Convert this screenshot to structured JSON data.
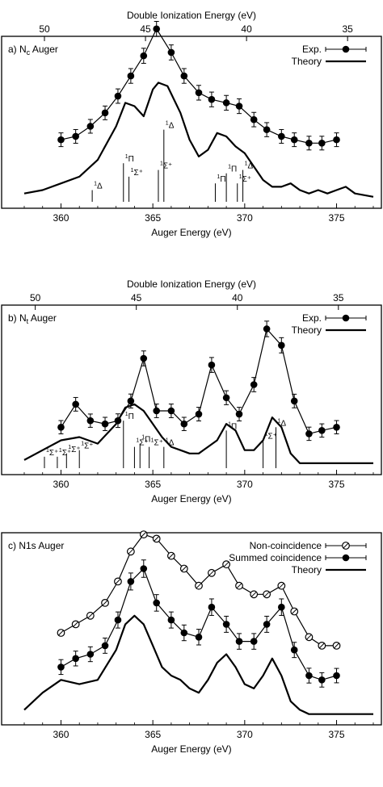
{
  "chart_data": [
    {
      "panel": "a",
      "type": "line",
      "title": "a) N",
      "title_sub": "c",
      "title_rest": " Auger",
      "xlabel": "Auger Energy (eV)",
      "top_axis_label": "Double Ionization Energy (eV)",
      "xlim": [
        358,
        377
      ],
      "ylim": [
        0,
        1
      ],
      "x_ticks": [
        360,
        365,
        370,
        375
      ],
      "top_ticks": [
        {
          "v": 50,
          "x": 359.1
        },
        {
          "v": 45,
          "x": 364.6
        },
        {
          "v": 40,
          "x": 370.1
        },
        {
          "v": 35,
          "x": 375.6
        }
      ],
      "legend": [
        {
          "label": "Exp.",
          "style": "points"
        },
        {
          "label": "Theory",
          "style": "line"
        }
      ],
      "series": [
        {
          "name": "Exp.",
          "style": "points",
          "x": [
            360,
            360.8,
            361.6,
            362.4,
            363.1,
            363.8,
            364.5,
            365.2,
            366,
            366.7,
            367.5,
            368.2,
            369,
            369.7,
            370.5,
            371.2,
            372,
            372.7,
            373.5,
            374.2,
            375
          ],
          "y": [
            0.18,
            0.19,
            0.22,
            0.26,
            0.31,
            0.37,
            0.43,
            0.51,
            0.44,
            0.37,
            0.32,
            0.3,
            0.29,
            0.28,
            0.24,
            0.21,
            0.19,
            0.18,
            0.17,
            0.17,
            0.18
          ],
          "err": [
            0.012,
            0.012,
            0.012,
            0.012,
            0.014,
            0.015,
            0.016,
            0.016,
            0.016,
            0.015,
            0.015,
            0.015,
            0.015,
            0.015,
            0.014,
            0.013,
            0.012,
            0.012,
            0.012,
            0.012,
            0.012
          ]
        },
        {
          "name": "Theory",
          "style": "line",
          "x": [
            358,
            359,
            360,
            361,
            362,
            363,
            363.5,
            364,
            364.5,
            365,
            365.3,
            365.8,
            366.5,
            367,
            367.5,
            368,
            368.5,
            369,
            369.5,
            370,
            370.5,
            371,
            371.5,
            372,
            372.5,
            373,
            373.5,
            374,
            374.5,
            375,
            375.5,
            376,
            377
          ],
          "y": [
            0.02,
            0.03,
            0.05,
            0.07,
            0.12,
            0.22,
            0.29,
            0.28,
            0.25,
            0.33,
            0.35,
            0.34,
            0.26,
            0.18,
            0.13,
            0.15,
            0.2,
            0.19,
            0.16,
            0.14,
            0.1,
            0.06,
            0.04,
            0.04,
            0.05,
            0.03,
            0.02,
            0.03,
            0.02,
            0.03,
            0.04,
            0.02,
            0.01
          ]
        }
      ],
      "annotations": [
        {
          "label": "Δ",
          "x": 361.7,
          "h": 0.03
        },
        {
          "label": "Π",
          "x": 363.4,
          "h": 0.11
        },
        {
          "label": "Σ⁺",
          "x": 363.7,
          "h": 0.07
        },
        {
          "label": "Σ⁺",
          "x": 365.3,
          "h": 0.09
        },
        {
          "label": "Δ",
          "x": 365.6,
          "h": 0.21
        },
        {
          "label": "Π",
          "x": 368.4,
          "h": 0.05
        },
        {
          "label": "Π",
          "x": 369.0,
          "h": 0.08
        },
        {
          "label": "Σ⁺",
          "x": 369.6,
          "h": 0.05
        },
        {
          "label": "Δ",
          "x": 369.9,
          "h": 0.09
        }
      ]
    },
    {
      "panel": "b",
      "type": "line",
      "title": "b) N",
      "title_sub": "t",
      "title_rest": " Auger",
      "xlabel": "Auger Energy (eV)",
      "top_axis_label": "Double Ionization Energy (eV)",
      "xlim": [
        358,
        377
      ],
      "ylim": [
        0,
        1
      ],
      "x_ticks": [
        360,
        365,
        370,
        375
      ],
      "top_ticks": [
        {
          "v": 50,
          "x": 358.6
        },
        {
          "v": 45,
          "x": 364.1
        },
        {
          "v": 40,
          "x": 369.6
        },
        {
          "v": 35,
          "x": 375.1
        }
      ],
      "legend": [
        {
          "label": "Exp.",
          "style": "points"
        },
        {
          "label": "Theory",
          "style": "line"
        }
      ],
      "series": [
        {
          "name": "Exp.",
          "style": "points",
          "x": [
            360,
            360.8,
            361.6,
            362.4,
            363.1,
            363.8,
            364.5,
            365.2,
            366,
            366.7,
            367.5,
            368.2,
            369,
            369.7,
            370.5,
            371.2,
            372,
            372.7,
            373.5,
            374.2,
            375
          ],
          "y": [
            0.12,
            0.19,
            0.14,
            0.13,
            0.14,
            0.2,
            0.33,
            0.17,
            0.17,
            0.13,
            0.16,
            0.31,
            0.21,
            0.16,
            0.25,
            0.42,
            0.37,
            0.2,
            0.1,
            0.11,
            0.12
          ],
          "err": [
            0.011,
            0.012,
            0.011,
            0.011,
            0.012,
            0.013,
            0.016,
            0.012,
            0.012,
            0.011,
            0.012,
            0.016,
            0.013,
            0.012,
            0.014,
            0.018,
            0.017,
            0.012,
            0.011,
            0.011,
            0.011
          ]
        },
        {
          "name": "Theory",
          "style": "line",
          "x": [
            358,
            359,
            360,
            361,
            362,
            363,
            363.5,
            364,
            364.5,
            365,
            365.5,
            366,
            366.5,
            367,
            367.5,
            368,
            368.5,
            369,
            369.5,
            370,
            370.5,
            371,
            371.5,
            372,
            372.5,
            373,
            373.5,
            374,
            375,
            376,
            377
          ],
          "y": [
            0.02,
            0.05,
            0.08,
            0.09,
            0.07,
            0.13,
            0.18,
            0.19,
            0.17,
            0.13,
            0.09,
            0.06,
            0.05,
            0.04,
            0.04,
            0.06,
            0.08,
            0.13,
            0.11,
            0.05,
            0.05,
            0.08,
            0.15,
            0.12,
            0.04,
            0.01,
            0.01,
            0.01,
            0.01,
            0.01,
            0.01
          ]
        }
      ],
      "annotations": [
        {
          "label": "Σ⁺",
          "x": 359.1,
          "h": 0.03
        },
        {
          "label": "Σ⁺",
          "x": 359.8,
          "h": 0.03
        },
        {
          "label": "Σ⁺",
          "x": 360.3,
          "h": 0.04
        },
        {
          "label": "Σ⁺",
          "x": 361.0,
          "h": 0.05
        },
        {
          "label": "Π",
          "x": 363.4,
          "h": 0.14
        },
        {
          "label": "Σ⁺",
          "x": 364.0,
          "h": 0.06
        },
        {
          "label": "Π",
          "x": 364.3,
          "h": 0.07
        },
        {
          "label": "Σ⁺",
          "x": 364.8,
          "h": 0.06
        },
        {
          "label": "Δ",
          "x": 365.6,
          "h": 0.06
        },
        {
          "label": "Π",
          "x": 369.0,
          "h": 0.11
        },
        {
          "label": "Σ⁺",
          "x": 371.0,
          "h": 0.08
        },
        {
          "label": "Δ",
          "x": 371.7,
          "h": 0.12
        }
      ]
    },
    {
      "panel": "c",
      "type": "line",
      "title": "c) N1s Auger",
      "xlabel": "Auger Energy (eV)",
      "xlim": [
        358,
        377
      ],
      "ylim": [
        0,
        1
      ],
      "x_ticks": [
        360,
        365,
        370,
        375
      ],
      "legend": [
        {
          "label": "Non-coincidence",
          "style": "open"
        },
        {
          "label": "Summed coincidence",
          "style": "points"
        },
        {
          "label": "Theory",
          "style": "line"
        }
      ],
      "series": [
        {
          "name": "Non-coincidence",
          "style": "open",
          "x": [
            360,
            360.8,
            361.6,
            362.4,
            363.1,
            363.8,
            364.5,
            365.2,
            366,
            366.7,
            367.5,
            368.2,
            369,
            369.7,
            370.5,
            371.2,
            372,
            372.7,
            373.5,
            374.2,
            375
          ],
          "y": [
            0.2,
            0.22,
            0.24,
            0.27,
            0.32,
            0.39,
            0.43,
            0.42,
            0.38,
            0.35,
            0.31,
            0.34,
            0.36,
            0.31,
            0.29,
            0.29,
            0.31,
            0.25,
            0.19,
            0.17,
            0.17
          ]
        },
        {
          "name": "Summed coincidence",
          "style": "points",
          "x": [
            360,
            360.8,
            361.6,
            362.4,
            363.1,
            363.8,
            364.5,
            365.2,
            366,
            366.7,
            367.5,
            368.2,
            369,
            369.7,
            370.5,
            371.2,
            372,
            372.7,
            373.5,
            374.2,
            375
          ],
          "y": [
            0.12,
            0.14,
            0.15,
            0.17,
            0.23,
            0.32,
            0.35,
            0.27,
            0.23,
            0.2,
            0.19,
            0.26,
            0.22,
            0.18,
            0.18,
            0.22,
            0.26,
            0.16,
            0.1,
            0.09,
            0.1
          ],
          "err": [
            0.012,
            0.012,
            0.012,
            0.013,
            0.015,
            0.017,
            0.018,
            0.016,
            0.015,
            0.014,
            0.014,
            0.016,
            0.015,
            0.014,
            0.014,
            0.015,
            0.016,
            0.013,
            0.012,
            0.011,
            0.011
          ]
        },
        {
          "name": "Theory",
          "style": "line",
          "x": [
            358,
            359,
            360,
            361,
            362,
            363,
            363.5,
            364,
            364.5,
            365,
            365.5,
            366,
            366.5,
            367,
            367.5,
            368,
            368.5,
            369,
            369.5,
            370,
            370.5,
            371,
            371.5,
            372,
            372.5,
            373,
            373.5,
            374,
            375,
            376,
            377
          ],
          "y": [
            0.02,
            0.06,
            0.09,
            0.08,
            0.09,
            0.16,
            0.22,
            0.24,
            0.22,
            0.17,
            0.12,
            0.1,
            0.09,
            0.07,
            0.06,
            0.09,
            0.13,
            0.15,
            0.12,
            0.08,
            0.07,
            0.1,
            0.14,
            0.1,
            0.04,
            0.02,
            0.01,
            0.01,
            0.01,
            0.01,
            0.01
          ]
        }
      ]
    }
  ]
}
